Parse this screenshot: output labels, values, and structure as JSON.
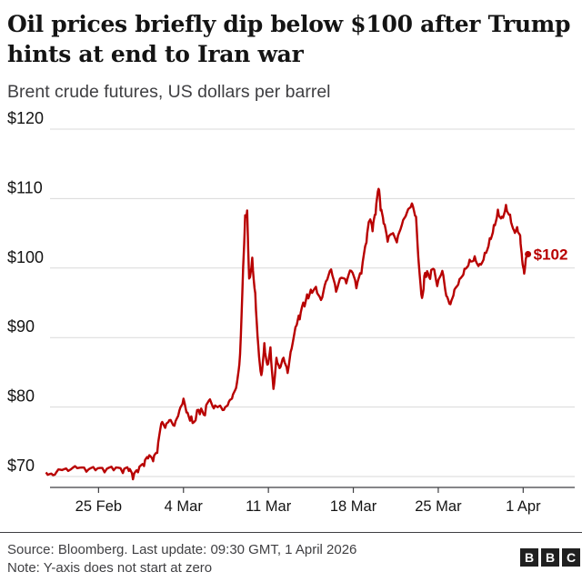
{
  "title": "Oil prices briefly dip below $100 after Trump hints at end to Iran war",
  "subtitle": "Brent crude futures, US dollars per barrel",
  "source": "Source: Bloomberg. Last update: 09:30 GMT, 1 April 2026",
  "note": "Note: Y-axis does not start at zero",
  "logo": {
    "letters": [
      "B",
      "B",
      "C"
    ]
  },
  "colors": {
    "line": "#b80000",
    "text": "#141414",
    "axis": "#3f3f42",
    "grid": "#d9d9d9"
  },
  "chart_data": {
    "type": "line",
    "ylim": [
      70,
      120
    ],
    "yticks": [
      70,
      80,
      90,
      100,
      110,
      120
    ],
    "ytick_labels": [
      "$70",
      "$80",
      "$90",
      "$100",
      "$110",
      "$120"
    ],
    "xlim": [
      "2026-02-21",
      "2026-04-01T12:00"
    ],
    "xticks": [
      "2026-02-25",
      "2026-03-04",
      "2026-03-11",
      "2026-03-18",
      "2026-03-25",
      "2026-04-01"
    ],
    "xtick_labels": [
      "25 Feb",
      "4 Mar",
      "11 Mar",
      "18 Mar",
      "25 Mar",
      "1 Apr"
    ],
    "end_label": "$102",
    "end_value": 102,
    "series": [
      {
        "color": "#b80000",
        "points": [
          [
            "2026-02-20T16:00",
            70.6
          ],
          [
            "2026-02-21T06:00",
            70.2
          ],
          [
            "2026-02-21T20:00",
            71.0
          ],
          [
            "2026-02-22T12:00",
            70.8
          ],
          [
            "2026-02-23T06:00",
            71.2
          ],
          [
            "2026-02-24T00:00",
            70.7
          ],
          [
            "2026-02-24T18:00",
            70.9
          ],
          [
            "2026-02-25T12:00",
            70.6
          ],
          [
            "2026-02-26T06:00",
            70.9
          ],
          [
            "2026-02-27T00:00",
            70.5
          ],
          [
            "2026-02-27T12:00",
            70.8
          ],
          [
            "2026-02-27T20:00",
            69.6
          ],
          [
            "2026-02-28T06:00",
            70.6
          ],
          [
            "2026-02-28T18:00",
            71.5
          ],
          [
            "2026-03-01T02:00",
            72.6
          ],
          [
            "2026-03-01T12:00",
            72.2
          ],
          [
            "2026-03-01T20:00",
            73.4
          ],
          [
            "2026-03-02T04:00",
            77.6
          ],
          [
            "2026-03-02T12:00",
            77.0
          ],
          [
            "2026-03-02T20:00",
            78.1
          ],
          [
            "2026-03-03T06:00",
            77.3
          ],
          [
            "2026-03-03T16:00",
            79.5
          ],
          [
            "2026-03-04T00:00",
            81.2
          ],
          [
            "2026-03-04T08:00",
            79.2
          ],
          [
            "2026-03-04T18:00",
            77.7
          ],
          [
            "2026-03-05T06:00",
            79.6
          ],
          [
            "2026-03-05T16:00",
            78.9
          ],
          [
            "2026-03-06T02:00",
            80.9
          ],
          [
            "2026-03-06T12:00",
            79.8
          ],
          [
            "2026-03-06T22:00",
            80.1
          ],
          [
            "2026-03-07T08:00",
            79.6
          ],
          [
            "2026-03-07T18:00",
            80.8
          ],
          [
            "2026-03-08T02:00",
            81.8
          ],
          [
            "2026-03-08T10:00",
            83.6
          ],
          [
            "2026-03-08T16:00",
            87.6
          ],
          [
            "2026-03-08T22:00",
            100.2
          ],
          [
            "2026-03-09T02:00",
            107.6
          ],
          [
            "2026-03-09T06:00",
            108.3
          ],
          [
            "2026-03-09T10:00",
            98.5
          ],
          [
            "2026-03-09T16:00",
            101.5
          ],
          [
            "2026-03-09T22:00",
            96.4
          ],
          [
            "2026-03-10T04:00",
            88.9
          ],
          [
            "2026-03-10T10:00",
            84.6
          ],
          [
            "2026-03-10T16:00",
            89.2
          ],
          [
            "2026-03-10T22:00",
            86.1
          ],
          [
            "2026-03-11T04:00",
            88.6
          ],
          [
            "2026-03-11T10:00",
            82.6
          ],
          [
            "2026-03-11T16:00",
            87.1
          ],
          [
            "2026-03-11T22:00",
            85.6
          ],
          [
            "2026-03-12T06:00",
            87.1
          ],
          [
            "2026-03-12T14:00",
            84.9
          ],
          [
            "2026-03-12T22:00",
            88.4
          ],
          [
            "2026-03-13T08:00",
            91.8
          ],
          [
            "2026-03-13T16:00",
            93.6
          ],
          [
            "2026-03-14T02:00",
            95.3
          ],
          [
            "2026-03-14T12:00",
            96.9
          ],
          [
            "2026-03-14T22:00",
            97.3
          ],
          [
            "2026-03-15T08:00",
            95.4
          ],
          [
            "2026-03-15T18:00",
            98.1
          ],
          [
            "2026-03-16T04:00",
            99.8
          ],
          [
            "2026-03-16T14:00",
            96.6
          ],
          [
            "2026-03-17T00:00",
            98.6
          ],
          [
            "2026-03-17T10:00",
            97.8
          ],
          [
            "2026-03-17T20:00",
            99.6
          ],
          [
            "2026-03-18T06:00",
            97.1
          ],
          [
            "2026-03-18T16:00",
            99.2
          ],
          [
            "2026-03-19T02:00",
            103.7
          ],
          [
            "2026-03-19T08:00",
            106.8
          ],
          [
            "2026-03-19T14:00",
            105.3
          ],
          [
            "2026-03-19T20:00",
            107.7
          ],
          [
            "2026-03-20T02:00",
            111.4
          ],
          [
            "2026-03-20T06:00",
            108.3
          ],
          [
            "2026-03-20T12:00",
            106.4
          ],
          [
            "2026-03-20T20:00",
            103.8
          ],
          [
            "2026-03-21T04:00",
            104.9
          ],
          [
            "2026-03-21T14:00",
            103.7
          ],
          [
            "2026-03-22T00:00",
            106.2
          ],
          [
            "2026-03-22T10:00",
            108.0
          ],
          [
            "2026-03-22T20:00",
            109.3
          ],
          [
            "2026-03-23T04:00",
            107.4
          ],
          [
            "2026-03-23T10:00",
            100.2
          ],
          [
            "2026-03-23T16:00",
            95.7
          ],
          [
            "2026-03-23T22:00",
            99.3
          ],
          [
            "2026-03-24T06:00",
            98.7
          ],
          [
            "2026-03-24T14:00",
            99.9
          ],
          [
            "2026-03-24T22:00",
            97.4
          ],
          [
            "2026-03-25T08:00",
            99.6
          ],
          [
            "2026-03-25T16:00",
            96.0
          ],
          [
            "2026-03-26T00:00",
            94.8
          ],
          [
            "2026-03-26T08:00",
            96.9
          ],
          [
            "2026-03-26T18:00",
            98.4
          ],
          [
            "2026-03-27T04:00",
            99.9
          ],
          [
            "2026-03-27T14:00",
            101.2
          ],
          [
            "2026-03-28T00:00",
            101.7
          ],
          [
            "2026-03-28T10:00",
            100.6
          ],
          [
            "2026-03-28T20:00",
            102.2
          ],
          [
            "2026-03-29T06:00",
            104.3
          ],
          [
            "2026-03-29T14:00",
            106.2
          ],
          [
            "2026-03-29T22:00",
            108.4
          ],
          [
            "2026-03-30T06:00",
            107.4
          ],
          [
            "2026-03-30T14:00",
            109.1
          ],
          [
            "2026-03-30T22:00",
            107.7
          ],
          [
            "2026-03-31T06:00",
            105.4
          ],
          [
            "2026-03-31T12:00",
            105.9
          ],
          [
            "2026-03-31T18:00",
            104.7
          ],
          [
            "2026-03-31T22:00",
            101.2
          ],
          [
            "2026-04-01T02:00",
            99.2
          ],
          [
            "2026-04-01T06:00",
            101.6
          ],
          [
            "2026-04-01T09:30",
            102.0
          ]
        ]
      }
    ]
  }
}
